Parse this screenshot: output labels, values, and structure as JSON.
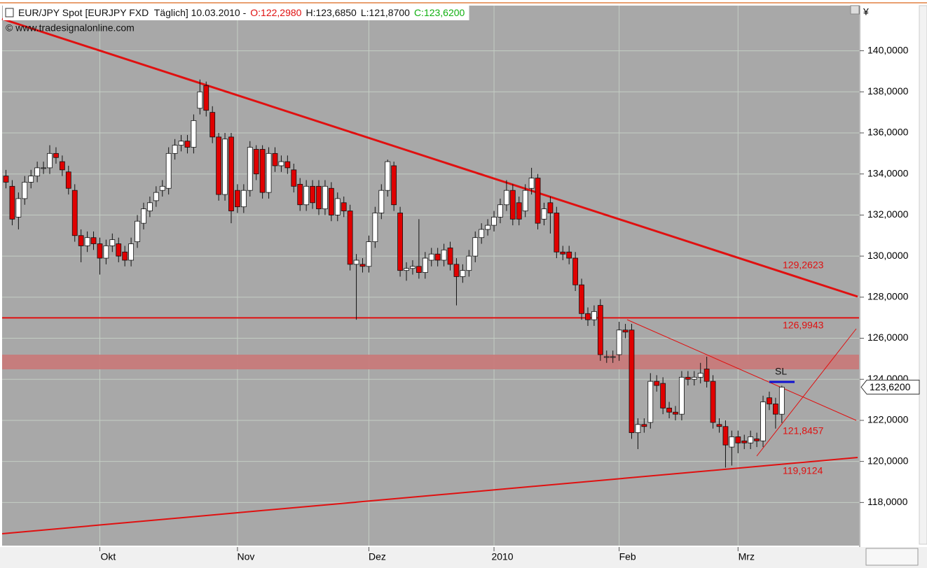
{
  "chart_data": {
    "type": "candlestick",
    "title": "EUR/JPY Spot [EURJPY FXD  Täglich] 10.03.2010 -",
    "quote": {
      "open": "O:122,2980",
      "high": "H:123,6850",
      "low": "L:121,8700",
      "close": "C:123,6200"
    },
    "source": "© www.tradesignalonline.com",
    "currency": "¥",
    "last_label": "123,6200",
    "categories": [
      null,
      null,
      null,
      null,
      null,
      null,
      null,
      null,
      null,
      null,
      null,
      null,
      null,
      null,
      null,
      "Okt",
      null,
      null,
      null,
      null,
      null,
      null,
      null,
      null,
      null,
      null,
      null,
      null,
      null,
      null,
      null,
      null,
      null,
      null,
      null,
      null,
      null,
      "Nov",
      null,
      null,
      null,
      null,
      null,
      null,
      null,
      null,
      null,
      null,
      null,
      null,
      null,
      null,
      null,
      null,
      null,
      null,
      null,
      null,
      "Dez",
      null,
      null,
      null,
      null,
      null,
      null,
      null,
      null,
      null,
      null,
      null,
      null,
      null,
      null,
      null,
      null,
      null,
      null,
      null,
      "2010",
      null,
      null,
      null,
      null,
      null,
      null,
      null,
      null,
      null,
      null,
      null,
      null,
      null,
      null,
      null,
      null,
      null,
      null,
      null,
      "Feb",
      null,
      null,
      null,
      null,
      null,
      null,
      null,
      null,
      null,
      null,
      null,
      null,
      null,
      null,
      null,
      null,
      null,
      null,
      "Mrz",
      null,
      null,
      null,
      null,
      null,
      null,
      null
    ],
    "open": [
      133.9,
      133.4,
      131.9,
      132.8,
      133.6,
      133.9,
      134.3,
      134.3,
      135.0,
      134.6,
      134.1,
      133.2,
      131.0,
      130.5,
      130.9,
      130.6,
      129.9,
      130.5,
      130.6,
      130.2,
      129.8,
      130.7,
      131.6,
      132.2,
      132.7,
      133.2,
      133.3,
      135.0,
      135.4,
      135.6,
      135.3,
      137.2,
      138.3,
      137.0,
      135.8,
      133.0,
      135.8,
      133.2,
      132.4,
      133.2,
      135.2,
      135.2,
      133.1,
      135.0,
      134.4,
      134.6,
      134.2,
      133.5,
      132.5,
      133.4,
      133.4,
      132.3,
      133.3,
      132.0,
      132.6,
      132.2,
      129.6,
      129.6,
      129.5,
      130.7,
      132.1,
      133.2,
      134.4,
      132.1,
      129.3,
      129.4,
      129.5,
      129.2,
      129.8,
      130.1,
      129.8,
      130.4,
      129.6,
      129.0,
      129.3,
      130.0,
      130.9,
      131.3,
      131.5,
      131.9,
      132.5,
      133.2,
      132.6,
      132.2,
      133.3,
      133.8,
      131.8,
      132.6,
      132.1,
      130.2,
      130.2,
      129.9,
      128.6,
      127.2,
      126.9,
      127.6,
      125.1,
      125.1,
      125.2,
      126.4,
      126.4,
      121.4,
      121.8,
      121.9,
      123.9,
      123.8,
      122.6,
      122.4,
      122.3,
      124.1,
      124.0,
      124.1,
      124.5,
      123.9,
      121.8,
      121.7,
      120.7,
      121.2,
      121.0,
      120.9,
      121.1,
      121.0,
      123.1,
      122.8,
      122.298
    ],
    "high": [
      134.2,
      133.7,
      133.1,
      133.9,
      134.2,
      134.6,
      134.6,
      135.4,
      135.3,
      134.9,
      134.4,
      133.5,
      131.3,
      131.2,
      131.2,
      130.9,
      130.8,
      131.1,
      130.9,
      130.5,
      130.9,
      132.0,
      132.6,
      132.9,
      133.4,
      133.7,
      135.3,
      135.7,
      135.9,
      135.9,
      136.9,
      138.6,
      138.5,
      137.3,
      136.0,
      136.0,
      136.0,
      133.5,
      133.5,
      135.6,
      135.4,
      135.4,
      135.3,
      135.3,
      134.9,
      134.9,
      134.5,
      133.8,
      133.7,
      133.7,
      133.7,
      133.7,
      133.6,
      133.1,
      132.9,
      132.5,
      130.1,
      129.9,
      131.0,
      132.4,
      133.5,
      134.7,
      134.6,
      132.4,
      129.7,
      129.8,
      131.8,
      130.2,
      130.4,
      130.4,
      130.6,
      130.7,
      129.9,
      129.6,
      130.3,
      131.2,
      131.6,
      131.8,
      132.2,
      132.8,
      133.7,
      133.5,
      132.9,
      133.5,
      134.3,
      134.0,
      132.6,
      132.9,
      132.4,
      130.5,
      130.5,
      130.2,
      128.9,
      127.5,
      127.6,
      127.9,
      125.4,
      125.4,
      126.8,
      126.7,
      126.7,
      122.1,
      122.1,
      124.3,
      124.2,
      124.1,
      122.9,
      122.7,
      124.4,
      124.4,
      124.4,
      124.8,
      125.1,
      124.2,
      122.1,
      122.0,
      121.5,
      121.5,
      121.3,
      121.5,
      121.4,
      123.2,
      123.4,
      123.1,
      123.685
    ],
    "low": [
      133.3,
      131.5,
      131.3,
      132.5,
      133.3,
      133.6,
      134.0,
      134.0,
      134.5,
      133.9,
      133.0,
      130.7,
      129.7,
      130.2,
      130.3,
      129.1,
      129.6,
      130.2,
      129.7,
      129.5,
      129.5,
      130.4,
      131.3,
      131.9,
      132.4,
      132.9,
      133.0,
      134.7,
      135.1,
      135.0,
      135.0,
      136.9,
      136.8,
      135.5,
      132.7,
      132.7,
      131.6,
      132.1,
      132.1,
      132.9,
      133.7,
      132.8,
      132.8,
      134.1,
      134.1,
      134.0,
      133.1,
      132.2,
      132.2,
      132.3,
      132.0,
      132.0,
      131.7,
      131.7,
      131.9,
      129.3,
      126.9,
      129.2,
      129.2,
      130.4,
      131.8,
      132.9,
      132.2,
      129.0,
      128.8,
      129.1,
      128.9,
      128.9,
      129.5,
      129.5,
      129.5,
      129.3,
      127.6,
      128.7,
      129.0,
      129.7,
      130.6,
      131.0,
      131.2,
      131.6,
      132.2,
      131.5,
      131.5,
      131.9,
      133.0,
      131.3,
      131.5,
      131.1,
      129.9,
      129.8,
      129.6,
      128.3,
      126.9,
      126.6,
      126.6,
      124.9,
      124.8,
      124.8,
      124.9,
      126.0,
      121.1,
      120.6,
      121.4,
      121.6,
      123.4,
      122.3,
      122.1,
      122.0,
      122.0,
      123.7,
      123.7,
      123.8,
      123.6,
      121.6,
      121.4,
      119.7,
      119.8,
      120.4,
      120.6,
      120.6,
      120.7,
      120.7,
      122.5,
      121.6,
      121.87
    ],
    "close": [
      133.6,
      131.8,
      132.8,
      133.6,
      133.9,
      134.3,
      134.3,
      135.0,
      134.8,
      134.2,
      133.3,
      131.0,
      130.5,
      130.9,
      130.6,
      129.9,
      130.5,
      130.8,
      130.0,
      129.8,
      130.6,
      131.7,
      132.3,
      132.6,
      133.1,
      133.4,
      135.0,
      135.4,
      135.6,
      135.3,
      136.6,
      138.0,
      137.1,
      135.8,
      133.0,
      135.7,
      132.2,
      132.4,
      133.2,
      135.3,
      134.0,
      133.1,
      135.0,
      134.4,
      134.6,
      134.3,
      133.4,
      132.5,
      133.4,
      132.6,
      132.3,
      133.4,
      132.0,
      132.8,
      132.2,
      129.6,
      129.8,
      129.5,
      130.7,
      132.1,
      133.2,
      134.6,
      132.5,
      129.3,
      129.4,
      129.5,
      129.2,
      129.9,
      130.1,
      129.8,
      130.3,
      129.6,
      129.0,
      129.3,
      130.0,
      130.9,
      131.3,
      131.5,
      131.9,
      132.5,
      133.2,
      131.8,
      131.8,
      133.2,
      133.8,
      131.6,
      132.3,
      132.1,
      130.2,
      130.1,
      129.9,
      128.6,
      127.2,
      126.9,
      127.3,
      125.2,
      125.1,
      125.1,
      126.4,
      126.3,
      121.4,
      121.8,
      121.7,
      123.9,
      123.7,
      122.6,
      122.4,
      122.3,
      124.1,
      124.0,
      124.1,
      124.3,
      123.9,
      121.9,
      121.7,
      120.8,
      121.2,
      120.9,
      120.9,
      121.2,
      121.0,
      122.9,
      122.8,
      122.3,
      123.62
    ],
    "up_color": "#ffffff",
    "down_color": "#e00000",
    "ylim": [
      115.9,
      142.2
    ],
    "yticks": [
      {
        "value": 118,
        "label": "118,0000"
      },
      {
        "value": 120,
        "label": "120,0000"
      },
      {
        "value": 122,
        "label": "122,0000"
      },
      {
        "value": 124,
        "label": "124,0000"
      },
      {
        "value": 126,
        "label": "126,0000"
      },
      {
        "value": 128,
        "label": "128,0000"
      },
      {
        "value": 130,
        "label": "130,0000"
      },
      {
        "value": 132,
        "label": "132,0000"
      },
      {
        "value": 134,
        "label": "134,0000"
      },
      {
        "value": 136,
        "label": "136,0000"
      },
      {
        "value": 138,
        "label": "138,0000"
      },
      {
        "value": 140,
        "label": "140,0000"
      }
    ],
    "grid": true,
    "annotations": [
      {
        "value": 129.2623,
        "label": "129,2623"
      },
      {
        "value": 126.9943,
        "label": "126,9943"
      },
      {
        "value": 121.8457,
        "label": "121,8457"
      },
      {
        "value": 119.9124,
        "label": "119,9124"
      }
    ],
    "stop_label": "SL"
  }
}
